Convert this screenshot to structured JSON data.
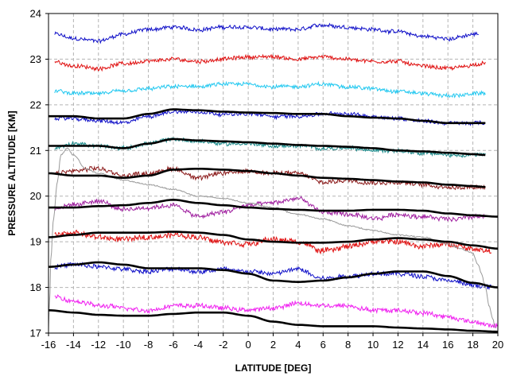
{
  "chart_data": {
    "type": "line",
    "title": "",
    "xlabel": "LATITUDE [DEG]",
    "ylabel": "PRESSURE ALTITUDE [KM]",
    "xlim": [
      -16,
      20
    ],
    "ylim": [
      17,
      24
    ],
    "xticks": [
      -16,
      -14,
      -12,
      -10,
      -8,
      -6,
      -4,
      -2,
      0,
      2,
      4,
      6,
      8,
      10,
      12,
      14,
      16,
      18,
      20
    ],
    "yticks": [
      17,
      18,
      19,
      20,
      21,
      22,
      23,
      24
    ],
    "grid": true,
    "legend": "none",
    "series": [
      {
        "color": "#1010c8",
        "style": "noisy",
        "noise": 0.05,
        "x": [
          -15.5,
          -14,
          -12,
          -10,
          -8,
          -6,
          -4,
          -2,
          0,
          2,
          4,
          6,
          8,
          10,
          12,
          14,
          16,
          18.5
        ],
        "y": [
          23.55,
          23.45,
          23.4,
          23.55,
          23.65,
          23.7,
          23.65,
          23.7,
          23.7,
          23.65,
          23.65,
          23.75,
          23.7,
          23.65,
          23.6,
          23.5,
          23.45,
          23.55
        ]
      },
      {
        "color": "#e01010",
        "style": "noisy",
        "noise": 0.05,
        "x": [
          -15.5,
          -14,
          -12,
          -10,
          -8,
          -6,
          -4,
          -2,
          0,
          2,
          4,
          6,
          8,
          10,
          12,
          14,
          16,
          19
        ],
        "y": [
          22.95,
          22.85,
          22.8,
          22.9,
          22.95,
          23.0,
          22.95,
          23.0,
          23.05,
          23.05,
          23.0,
          23.05,
          23.0,
          22.95,
          22.95,
          22.85,
          22.8,
          22.9
        ]
      },
      {
        "color": "#22c8f0",
        "style": "noisy",
        "noise": 0.05,
        "x": [
          -15.5,
          -14,
          -12,
          -10,
          -8,
          -6,
          -4,
          -2,
          0,
          2,
          4,
          6,
          8,
          10,
          12,
          14,
          16,
          19
        ],
        "y": [
          22.3,
          22.25,
          22.25,
          22.3,
          22.35,
          22.4,
          22.4,
          22.45,
          22.45,
          22.4,
          22.4,
          22.45,
          22.4,
          22.35,
          22.3,
          22.25,
          22.2,
          22.25
        ]
      },
      {
        "color": "#1010c8",
        "style": "noisy",
        "noise": 0.05,
        "x": [
          -15.5,
          -14,
          -12,
          -10,
          -8,
          -6,
          -4,
          -2,
          0,
          2,
          4,
          6,
          8,
          10,
          12,
          14,
          16,
          19
        ],
        "y": [
          21.7,
          21.7,
          21.65,
          21.6,
          21.75,
          21.85,
          21.85,
          21.8,
          21.8,
          21.75,
          21.75,
          21.8,
          21.8,
          21.75,
          21.7,
          21.65,
          21.6,
          21.6
        ]
      },
      {
        "color": "#1a8a8a",
        "style": "noisy",
        "noise": 0.05,
        "x": [
          -15.5,
          -14,
          -12,
          -10,
          -8,
          -6,
          -4,
          -2,
          0,
          2,
          4,
          6,
          8,
          10,
          12,
          14,
          16,
          19
        ],
        "y": [
          21.05,
          21.15,
          21.1,
          21.05,
          21.15,
          21.25,
          21.2,
          21.15,
          21.15,
          21.1,
          21.1,
          21.05,
          21.05,
          21.0,
          21.0,
          20.95,
          20.9,
          20.9
        ]
      },
      {
        "color": "#8b1a1a",
        "style": "noisy",
        "noise": 0.06,
        "x": [
          -15.5,
          -14,
          -12,
          -10,
          -8,
          -6,
          -4,
          -2,
          0,
          2,
          4,
          6,
          8,
          10,
          12,
          14,
          16,
          19
        ],
        "y": [
          20.5,
          20.55,
          20.6,
          20.45,
          20.5,
          20.6,
          20.4,
          20.5,
          20.55,
          20.5,
          20.5,
          20.3,
          20.35,
          20.3,
          20.3,
          20.25,
          20.2,
          20.2
        ]
      },
      {
        "color": "#a020a0",
        "style": "noisy",
        "noise": 0.06,
        "x": [
          -15.5,
          -14,
          -12,
          -10,
          -8,
          -6,
          -4,
          -2,
          0,
          2,
          4,
          6,
          8,
          10,
          12,
          14,
          16,
          19
        ],
        "y": [
          19.75,
          19.8,
          19.9,
          19.7,
          19.75,
          19.8,
          19.55,
          19.65,
          19.8,
          19.85,
          19.95,
          19.65,
          19.6,
          19.5,
          19.6,
          19.55,
          19.5,
          19.55
        ]
      },
      {
        "color": "#e01010",
        "style": "noisy",
        "noise": 0.07,
        "x": [
          -15.5,
          -14,
          -12,
          -10,
          -8,
          -6,
          -4,
          -2,
          0,
          2,
          4,
          6,
          8,
          10,
          12,
          14,
          16,
          18,
          19.5
        ],
        "y": [
          19.15,
          19.2,
          19.1,
          19.05,
          19.1,
          19.15,
          19.1,
          19.0,
          18.95,
          19.05,
          19.0,
          18.8,
          18.9,
          19.0,
          19.0,
          18.9,
          18.95,
          18.85,
          18.8
        ]
      },
      {
        "color": "#1010c8",
        "style": "noisy",
        "noise": 0.06,
        "x": [
          -15.5,
          -14,
          -12,
          -10,
          -8,
          -6,
          -4,
          -2,
          0,
          2,
          4,
          6,
          8,
          10,
          12,
          14,
          16,
          18,
          19.5
        ],
        "y": [
          18.45,
          18.5,
          18.45,
          18.4,
          18.35,
          18.4,
          18.35,
          18.4,
          18.35,
          18.3,
          18.4,
          18.2,
          18.25,
          18.3,
          18.3,
          18.25,
          18.15,
          18.05,
          18.0
        ]
      },
      {
        "color": "#f020f0",
        "style": "noisy",
        "noise": 0.06,
        "x": [
          -15.5,
          -14,
          -12,
          -10,
          -8,
          -6,
          -4,
          -2,
          0,
          2,
          4,
          6,
          8,
          10,
          12,
          14,
          16,
          18,
          20
        ],
        "y": [
          17.8,
          17.7,
          17.6,
          17.55,
          17.5,
          17.6,
          17.6,
          17.55,
          17.5,
          17.55,
          17.65,
          17.6,
          17.6,
          17.5,
          17.5,
          17.45,
          17.35,
          17.25,
          17.15
        ]
      },
      {
        "color": "#999999",
        "style": "noisy",
        "noise": 0.015,
        "x": [
          -16,
          -15.9,
          -15.8,
          -15.6,
          -15.3,
          -15.0,
          -14.5,
          -14.0,
          -13.0,
          -12.0,
          -10.0,
          -8.0,
          -6.0,
          -4.0,
          -2.0,
          0.0,
          2.0,
          4.0,
          6.0,
          8.0,
          10.0,
          12.0,
          14.0,
          16.0,
          17.0,
          17.5,
          18.0,
          18.4,
          18.7,
          18.9,
          19.0,
          19.3,
          19.6,
          19.8
        ],
        "y": [
          17.1,
          17.8,
          18.7,
          19.5,
          20.3,
          20.9,
          21.05,
          20.9,
          20.6,
          20.5,
          20.35,
          20.25,
          20.15,
          20.0,
          19.95,
          19.85,
          19.75,
          19.6,
          19.5,
          19.35,
          19.25,
          19.15,
          19.1,
          18.95,
          18.85,
          18.8,
          18.75,
          18.5,
          18.3,
          18.1,
          18.0,
          17.6,
          17.3,
          17.1
        ]
      },
      {
        "color": "#000000",
        "style": "smooth",
        "x": [
          -16,
          -14,
          -12,
          -10,
          -8,
          -6,
          -4,
          -2,
          0,
          2,
          4,
          6,
          8,
          10,
          12,
          14,
          16,
          18,
          19
        ],
        "y": [
          21.75,
          21.75,
          21.7,
          21.7,
          21.8,
          21.9,
          21.88,
          21.85,
          21.83,
          21.82,
          21.8,
          21.8,
          21.75,
          21.72,
          21.7,
          21.65,
          21.6,
          21.6,
          21.6
        ]
      },
      {
        "color": "#000000",
        "style": "smooth",
        "x": [
          -16,
          -14,
          -12,
          -10,
          -8,
          -6,
          -4,
          -2,
          0,
          2,
          4,
          6,
          8,
          10,
          12,
          14,
          16,
          18,
          19
        ],
        "y": [
          21.1,
          21.1,
          21.1,
          21.05,
          21.15,
          21.25,
          21.22,
          21.2,
          21.18,
          21.15,
          21.12,
          21.1,
          21.08,
          21.05,
          21.0,
          20.98,
          20.95,
          20.92,
          20.9
        ]
      },
      {
        "color": "#000000",
        "style": "smooth",
        "x": [
          -16,
          -14,
          -12,
          -10,
          -8,
          -6,
          -4,
          -2,
          0,
          2,
          4,
          6,
          8,
          10,
          12,
          14,
          16,
          18,
          19
        ],
        "y": [
          20.5,
          20.45,
          20.45,
          20.4,
          20.45,
          20.58,
          20.6,
          20.58,
          20.55,
          20.5,
          20.45,
          20.4,
          20.38,
          20.35,
          20.32,
          20.3,
          20.25,
          20.22,
          20.2
        ]
      },
      {
        "color": "#000000",
        "style": "smooth",
        "x": [
          -16,
          -14,
          -12,
          -10,
          -8,
          -6,
          -4,
          -2,
          0,
          2,
          4,
          6,
          8,
          10,
          12,
          14,
          16,
          18,
          20
        ],
        "y": [
          19.75,
          19.75,
          19.78,
          19.8,
          19.85,
          19.92,
          19.85,
          19.8,
          19.75,
          19.72,
          19.7,
          19.68,
          19.68,
          19.7,
          19.7,
          19.68,
          19.62,
          19.58,
          19.55
        ]
      },
      {
        "color": "#000000",
        "style": "smooth",
        "x": [
          -16,
          -14,
          -12,
          -10,
          -8,
          -6,
          -4,
          -2,
          0,
          2,
          4,
          6,
          8,
          10,
          12,
          14,
          16,
          18,
          20
        ],
        "y": [
          19.1,
          19.15,
          19.2,
          19.2,
          19.2,
          19.22,
          19.2,
          19.15,
          19.05,
          19.0,
          18.98,
          18.98,
          19.0,
          19.05,
          19.08,
          19.05,
          19.0,
          18.92,
          18.85
        ]
      },
      {
        "color": "#000000",
        "style": "smooth",
        "x": [
          -16,
          -14,
          -12,
          -10,
          -8,
          -6,
          -4,
          -2,
          0,
          2,
          4,
          6,
          8,
          10,
          12,
          14,
          16,
          18,
          20
        ],
        "y": [
          18.45,
          18.5,
          18.55,
          18.5,
          18.42,
          18.42,
          18.42,
          18.38,
          18.3,
          18.15,
          18.12,
          18.15,
          18.22,
          18.3,
          18.35,
          18.35,
          18.25,
          18.1,
          18.0
        ]
      },
      {
        "color": "#000000",
        "style": "smooth",
        "x": [
          -16,
          -14,
          -12,
          -10,
          -8,
          -6,
          -4,
          -2,
          0,
          2,
          4,
          6,
          8,
          10,
          12,
          14,
          16,
          18,
          20
        ],
        "y": [
          17.5,
          17.45,
          17.4,
          17.38,
          17.38,
          17.42,
          17.45,
          17.45,
          17.38,
          17.25,
          17.18,
          17.15,
          17.15,
          17.15,
          17.12,
          17.1,
          17.08,
          17.05,
          17.03
        ]
      }
    ]
  }
}
